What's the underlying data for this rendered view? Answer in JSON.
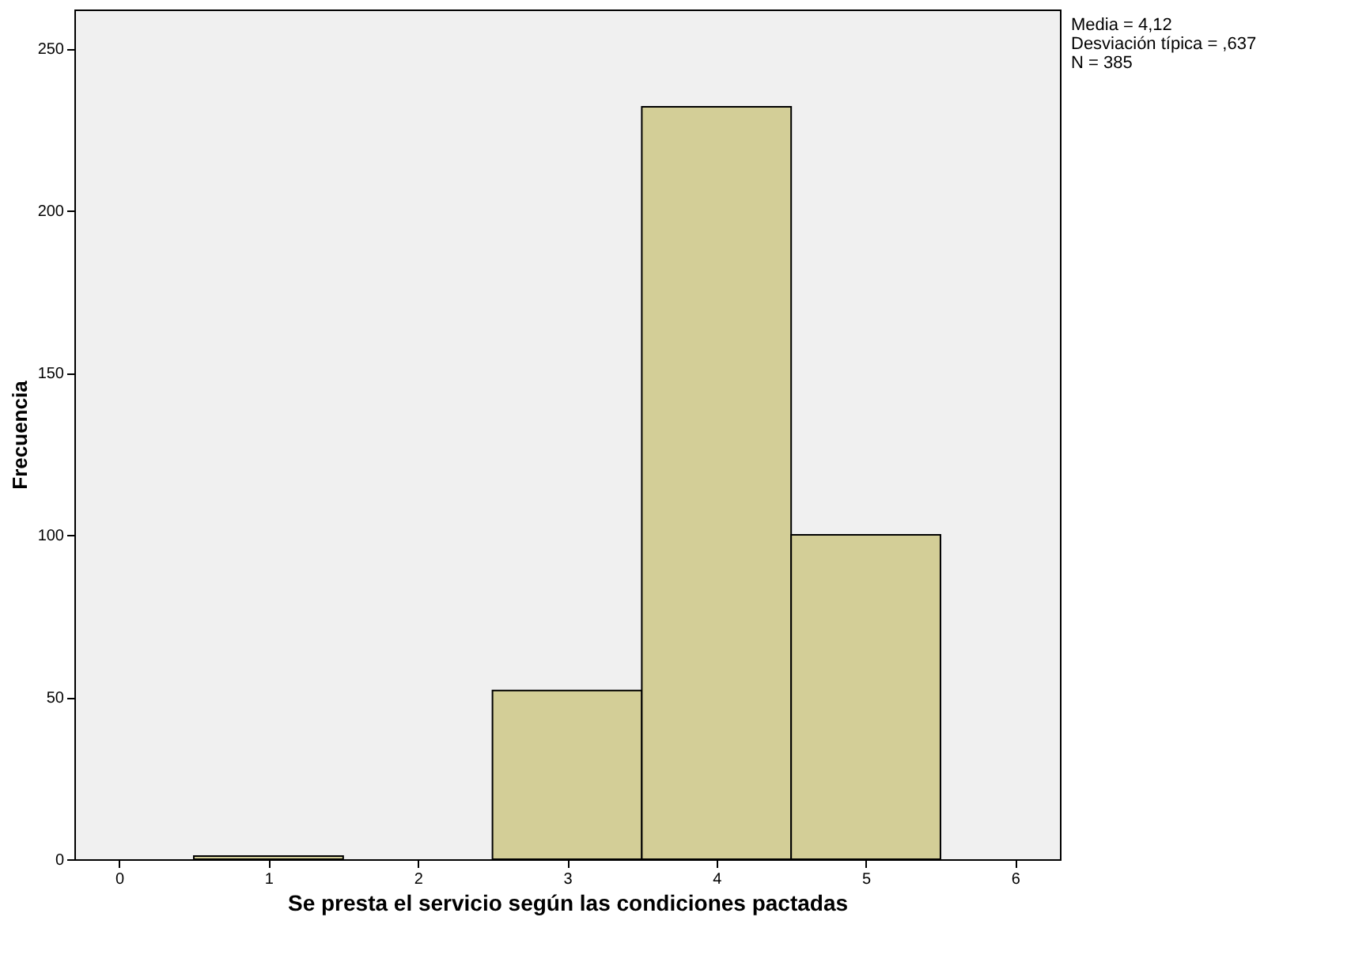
{
  "chart_data": {
    "type": "histogram",
    "xlabel": "Se presta el servicio según las condiciones pactadas",
    "ylabel": "Frecuencia",
    "bins": [
      0.5,
      1.5,
      2.5,
      3.5,
      4.5,
      5.5
    ],
    "values": [
      1,
      0,
      52,
      232,
      100
    ],
    "color": "#d3ce97",
    "xlim": [
      -0.3,
      6.3
    ],
    "xticks": [
      0,
      1,
      2,
      3,
      4,
      5,
      6
    ],
    "ylim": [
      0,
      262
    ],
    "yticks": [
      0,
      50,
      100,
      150,
      200,
      250
    ],
    "grid": false,
    "annotations": [
      "Media = 4,12",
      "Desviación típica = ,637",
      "N = 385"
    ]
  }
}
